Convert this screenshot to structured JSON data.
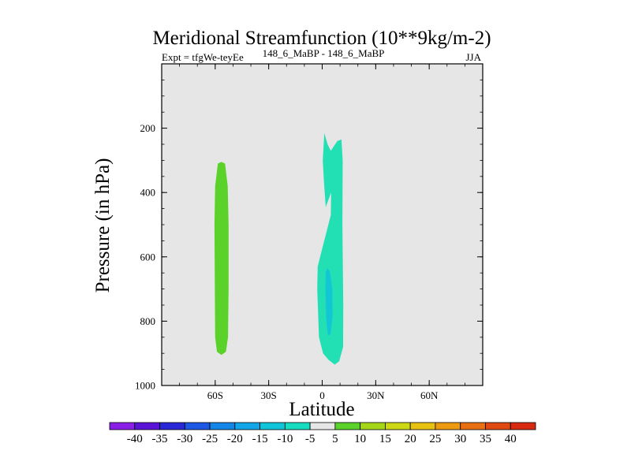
{
  "chart_data": {
    "type": "contour",
    "title": "Meridional Streamfunction (10**9kg/m-2)",
    "left_string": "Expt = tfgWe-teyEe",
    "center_string": "148_6_MaBP - 148_6_MaBP",
    "right_string": "JJA",
    "xlabel": "Latitude",
    "ylabel": "Pressure (in hPa)",
    "xlim": [
      -90,
      90
    ],
    "ylim": [
      1000,
      0
    ],
    "xticks": [
      {
        "value": -60,
        "label": "60S"
      },
      {
        "value": -30,
        "label": "30S"
      },
      {
        "value": 0,
        "label": "0"
      },
      {
        "value": 30,
        "label": "30N"
      },
      {
        "value": 60,
        "label": "60N"
      }
    ],
    "yticks": [
      {
        "value": 200,
        "label": "200"
      },
      {
        "value": 400,
        "label": "400"
      },
      {
        "value": 600,
        "label": "600"
      },
      {
        "value": 800,
        "label": "800"
      },
      {
        "value": 1000,
        "label": "1000"
      }
    ],
    "background_color": "#e6e6e6",
    "filled_regions": [
      {
        "name": "positive-cell-southern",
        "level_min": 5,
        "level_max": 10,
        "color": "#5bd22a",
        "polygon": [
          [
            -56.5,
            305
          ],
          [
            -54.5,
            310
          ],
          [
            -53,
            380
          ],
          [
            -52.5,
            500
          ],
          [
            -52.5,
            700
          ],
          [
            -52.8,
            850
          ],
          [
            -54,
            895
          ],
          [
            -56.5,
            905
          ],
          [
            -59,
            895
          ],
          [
            -60,
            850
          ],
          [
            -60.2,
            700
          ],
          [
            -60.4,
            500
          ],
          [
            -60,
            380
          ],
          [
            -58.5,
            310
          ]
        ]
      },
      {
        "name": "negative-cell-tropical",
        "level_min": -10,
        "level_max": -5,
        "color": "#22e0b4",
        "polygon": [
          [
            1.2,
            215
          ],
          [
            3,
            250
          ],
          [
            4.8,
            270
          ],
          [
            8.5,
            240
          ],
          [
            10.8,
            235
          ],
          [
            11.5,
            300
          ],
          [
            11.3,
            500
          ],
          [
            11.8,
            750
          ],
          [
            11.7,
            880
          ],
          [
            9.5,
            925
          ],
          [
            7,
            935
          ],
          [
            3.5,
            920
          ],
          [
            0.5,
            900
          ],
          [
            -1.8,
            850
          ],
          [
            -2.8,
            700
          ],
          [
            -2.5,
            630
          ],
          [
            -0.5,
            585
          ],
          [
            2.5,
            520
          ],
          [
            4.8,
            470
          ],
          [
            5,
            400
          ],
          [
            2,
            445
          ],
          [
            1,
            370
          ],
          [
            0.3,
            300
          ]
        ]
      },
      {
        "name": "negative-core-tropical",
        "level_min": -15,
        "level_max": -10,
        "color": "#12c6d6",
        "polygon": [
          [
            2.8,
            635
          ],
          [
            4.3,
            645
          ],
          [
            5.6,
            700
          ],
          [
            5.8,
            790
          ],
          [
            4.6,
            840
          ],
          [
            3.2,
            845
          ],
          [
            2.2,
            790
          ],
          [
            1.8,
            700
          ],
          [
            2,
            650
          ]
        ]
      }
    ],
    "colorbar": {
      "levels": [
        -40,
        -35,
        -30,
        -25,
        -20,
        -15,
        -10,
        -5,
        5,
        10,
        15,
        20,
        25,
        30,
        35,
        40
      ],
      "colors": [
        "#8a20e8",
        "#5a14d8",
        "#2a28d6",
        "#1c58e4",
        "#1486e8",
        "#12a6e8",
        "#10c4da",
        "#16dcc0",
        "#e6e6e6",
        "#5bd22a",
        "#a6d618",
        "#ccd814",
        "#e8c210",
        "#ec9a10",
        "#e87012",
        "#e04a12",
        "#d82a10"
      ]
    }
  }
}
